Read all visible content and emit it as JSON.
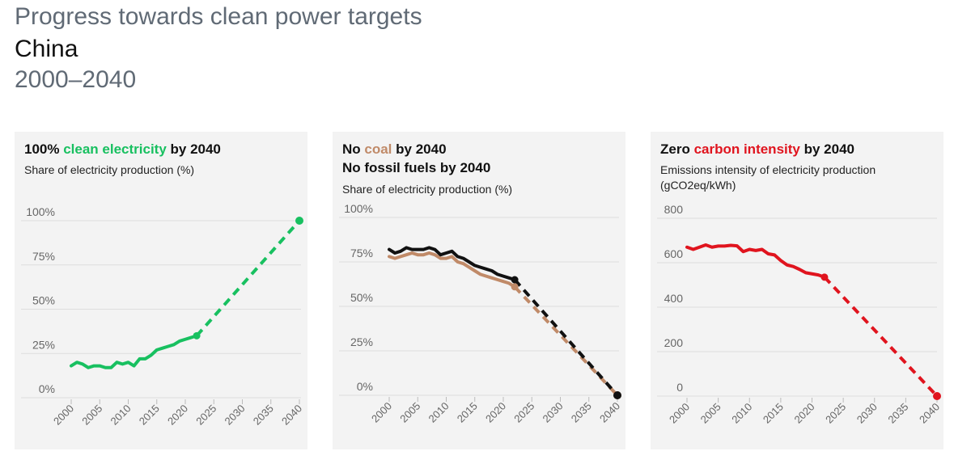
{
  "header": {
    "title": "Progress towards clean power targets",
    "country": "China",
    "years": "2000–2040"
  },
  "panels": [
    {
      "title_parts": [
        "100% ",
        "clean electricity",
        " by 2040"
      ],
      "title2": "",
      "subtitle": "Share of electricity production (%)",
      "subtitle2": ""
    },
    {
      "title_parts": [
        "No ",
        "coal",
        " by 2040"
      ],
      "title2": "No fossil fuels by 2040",
      "subtitle": "Share of electricity production (%)",
      "subtitle2": ""
    },
    {
      "title_parts": [
        "Zero ",
        "carbon intensity",
        " by 2040"
      ],
      "title2": "",
      "subtitle": "Emissions intensity of electricity production",
      "subtitle2": "(gCO2eq/kWh)"
    }
  ],
  "colors": {
    "clean": "#18c060",
    "coal": "#c08a68",
    "fossil": "#111111",
    "carbon": "#e0141e",
    "grid": "#dddddd",
    "tick_text": "#666666"
  },
  "chart_data": [
    {
      "type": "line",
      "x_ticks": [
        2000,
        2005,
        2010,
        2015,
        2020,
        2025,
        2030,
        2035,
        2040
      ],
      "y_ticks": [
        "0%",
        "25%",
        "50%",
        "75%",
        "100%"
      ],
      "ylim": [
        0,
        100
      ],
      "xlim": [
        2000,
        2040
      ],
      "series": [
        {
          "color_key": "clean",
          "x": [
            2000,
            2001,
            2002,
            2003,
            2004,
            2005,
            2006,
            2007,
            2008,
            2009,
            2010,
            2011,
            2012,
            2013,
            2014,
            2015,
            2016,
            2017,
            2018,
            2019,
            2020,
            2021,
            2022
          ],
          "values": [
            18,
            20,
            19,
            17,
            18,
            18,
            17,
            17,
            20,
            19,
            20,
            18,
            22,
            22,
            24,
            27,
            28,
            29,
            30,
            32,
            33,
            34,
            35
          ]
        }
      ],
      "projections": [
        {
          "color_key": "clean",
          "x": [
            2022,
            2040
          ],
          "values": [
            35,
            100
          ]
        }
      ]
    },
    {
      "type": "line",
      "x_ticks": [
        2000,
        2005,
        2010,
        2015,
        2020,
        2025,
        2030,
        2035,
        2040
      ],
      "y_ticks": [
        "0%",
        "25%",
        "50%",
        "75%",
        "100%"
      ],
      "ylim": [
        0,
        100
      ],
      "xlim": [
        2000,
        2040
      ],
      "series": [
        {
          "color_key": "coal",
          "x": [
            2000,
            2001,
            2002,
            2003,
            2004,
            2005,
            2006,
            2007,
            2008,
            2009,
            2010,
            2011,
            2012,
            2013,
            2014,
            2015,
            2016,
            2017,
            2018,
            2019,
            2020,
            2021,
            2022
          ],
          "values": [
            78,
            77,
            78,
            79,
            80,
            79,
            79,
            80,
            79,
            77,
            77,
            78,
            75,
            74,
            72,
            70,
            68,
            67,
            66,
            65,
            64,
            63,
            61
          ]
        },
        {
          "color_key": "fossil",
          "x": [
            2000,
            2001,
            2002,
            2003,
            2004,
            2005,
            2006,
            2007,
            2008,
            2009,
            2010,
            2011,
            2012,
            2013,
            2014,
            2015,
            2016,
            2017,
            2018,
            2019,
            2020,
            2021,
            2022
          ],
          "values": [
            82,
            80,
            81,
            83,
            82,
            82,
            82,
            83,
            82,
            79,
            80,
            81,
            78,
            77,
            75,
            73,
            72,
            71,
            70,
            68,
            67,
            66,
            65
          ]
        }
      ],
      "projections": [
        {
          "color_key": "coal",
          "x": [
            2022,
            2040
          ],
          "values": [
            61,
            0
          ]
        },
        {
          "color_key": "fossil",
          "x": [
            2022,
            2040
          ],
          "values": [
            65,
            0
          ]
        }
      ]
    },
    {
      "type": "line",
      "x_ticks": [
        2000,
        2005,
        2010,
        2015,
        2020,
        2025,
        2030,
        2035,
        2040
      ],
      "y_ticks": [
        "0",
        "200",
        "400",
        "600",
        "800"
      ],
      "ylim": [
        0,
        800
      ],
      "xlim": [
        2000,
        2040
      ],
      "series": [
        {
          "color_key": "carbon",
          "x": [
            2000,
            2001,
            2002,
            2003,
            2004,
            2005,
            2006,
            2007,
            2008,
            2009,
            2010,
            2011,
            2012,
            2013,
            2014,
            2015,
            2016,
            2017,
            2018,
            2019,
            2020,
            2021,
            2022
          ],
          "values": [
            670,
            660,
            670,
            680,
            670,
            675,
            675,
            678,
            676,
            650,
            660,
            655,
            660,
            640,
            635,
            610,
            590,
            583,
            570,
            555,
            550,
            545,
            535
          ]
        }
      ],
      "projections": [
        {
          "color_key": "carbon",
          "x": [
            2022,
            2040
          ],
          "values": [
            535,
            0
          ]
        }
      ]
    }
  ]
}
